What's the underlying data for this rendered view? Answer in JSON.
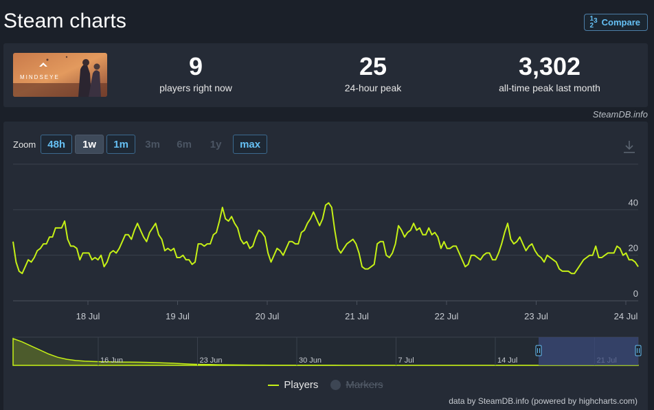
{
  "page": {
    "title": "Steam charts"
  },
  "compare": {
    "label": "Compare",
    "icon": "fraction-icon",
    "frac_top": "1",
    "frac_bottom": "2",
    "frac_side": "3"
  },
  "game": {
    "logo_text": "MINDSEYE"
  },
  "stats": [
    {
      "value": "9",
      "label": "players right now"
    },
    {
      "value": "25",
      "label": "24-hour peak"
    },
    {
      "value": "3,302",
      "label": "all-time peak last month"
    }
  ],
  "attribution": "SteamDB.info",
  "zoom": {
    "label": "Zoom",
    "buttons": [
      {
        "label": "48h",
        "state": "enabled"
      },
      {
        "label": "1w",
        "state": "selected"
      },
      {
        "label": "1m",
        "state": "enabled"
      },
      {
        "label": "3m",
        "state": "disabled"
      },
      {
        "label": "6m",
        "state": "disabled"
      },
      {
        "label": "1y",
        "state": "disabled"
      },
      {
        "label": "max",
        "state": "enabled"
      }
    ]
  },
  "legend": {
    "players": "Players",
    "markers": "Markers"
  },
  "credits": "data by SteamDB.info (powered by highcharts.com)",
  "colors": {
    "series": "#c6f116",
    "navigator_selection": "#3b4a7a",
    "grid": "#3a414d"
  },
  "chart_data": {
    "type": "line",
    "series": [
      {
        "name": "Players",
        "values": [
          26,
          17,
          13,
          12,
          15,
          18,
          17,
          19,
          22,
          23,
          25,
          25,
          28,
          28,
          32,
          32,
          32,
          35,
          27,
          24,
          24,
          23,
          18,
          21,
          21,
          21,
          18,
          19,
          18,
          20,
          15,
          17,
          21,
          22,
          21,
          23,
          26,
          29,
          29,
          27,
          31,
          34,
          31,
          28,
          26,
          30,
          32,
          34,
          29,
          27,
          22,
          23,
          22,
          23,
          19,
          19,
          20,
          18,
          18,
          16,
          17,
          25,
          25,
          24,
          25,
          25,
          29,
          30,
          35,
          41,
          36,
          35,
          37,
          34,
          32,
          27,
          25,
          26,
          23,
          24,
          28,
          31,
          30,
          28,
          21,
          17,
          20,
          23,
          22,
          20,
          23,
          26,
          26,
          25,
          25,
          30,
          31,
          34,
          36,
          39,
          36,
          33,
          36,
          42,
          43,
          41,
          31,
          23,
          21,
          23,
          25,
          26,
          27,
          25,
          21,
          15,
          14,
          14,
          15,
          16,
          25,
          26,
          26,
          20,
          19,
          21,
          25,
          33,
          31,
          28,
          30,
          31,
          34,
          31,
          32,
          29,
          29,
          32,
          29,
          30,
          28,
          23,
          26,
          23,
          23,
          24,
          24,
          21,
          18,
          15,
          16,
          20,
          20,
          19,
          18,
          20,
          21,
          21,
          18,
          18,
          21,
          25,
          30,
          34,
          27,
          25,
          26,
          28,
          25,
          22,
          24,
          25,
          22,
          20,
          19,
          17,
          20,
          19,
          18,
          17,
          14,
          13,
          13,
          13,
          12,
          12,
          14,
          16,
          18,
          19,
          20,
          20,
          24,
          19,
          19,
          20,
          21,
          21,
          21,
          24,
          23,
          20,
          21,
          18,
          18,
          17,
          15
        ]
      }
    ],
    "x_range": [
      "17 Jul",
      "24 Jul"
    ],
    "x_tick_labels": [
      "18 Jul",
      "19 Jul",
      "20 Jul",
      "21 Jul",
      "22 Jul",
      "23 Jul",
      "24 Jul"
    ],
    "y_tick_labels": [
      "0",
      "20",
      "40"
    ],
    "ylim": [
      0,
      60
    ],
    "navigator": {
      "tick_labels": [
        "16 Jun",
        "23 Jun",
        "30 Jun",
        "7 Jul",
        "14 Jul",
        "21 Jul"
      ],
      "values": [
        3302,
        2900,
        2400,
        1900,
        1400,
        1000,
        750,
        600,
        520,
        470,
        440,
        420,
        410,
        400,
        390,
        370,
        340,
        300,
        260,
        200,
        150,
        120,
        100,
        80,
        60,
        50,
        40,
        35,
        30,
        25,
        22,
        20,
        18,
        16,
        15,
        14,
        13,
        12,
        12,
        11,
        11,
        10,
        10,
        10,
        10,
        10,
        9,
        9,
        9,
        9,
        9,
        9,
        9,
        9,
        9,
        9,
        9,
        9,
        9,
        9,
        9,
        9,
        9,
        9,
        9,
        9,
        9,
        9,
        9,
        9,
        9
      ],
      "selected_range": [
        "17 Jul",
        "24 Jul"
      ]
    }
  }
}
